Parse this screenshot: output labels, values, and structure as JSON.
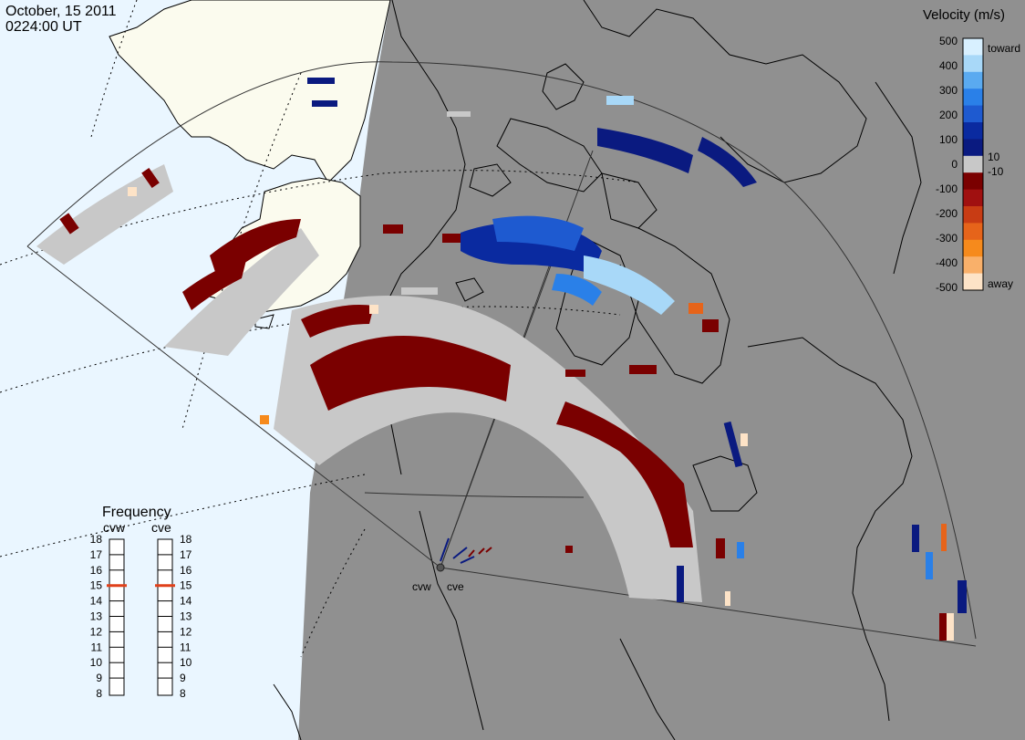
{
  "header": {
    "date": "October, 15 2011",
    "time": "0224:00 UT"
  },
  "colorbar": {
    "title": "Velocity (m/s)",
    "ticks": [
      "500",
      "400",
      "300",
      "200",
      "100",
      "0",
      "-100",
      "-200",
      "-300",
      "-400",
      "-500"
    ],
    "small_labels": [
      "10",
      "-10"
    ],
    "toward_label": "toward",
    "away_label": "away",
    "colors": [
      "#fde3c7",
      "#f9b06a",
      "#f68a1c",
      "#e6641a",
      "#c83c14",
      "#a01010",
      "#7a0000",
      "#c8c8c8",
      "#0a1a80",
      "#0a2aa0",
      "#1e5ad0",
      "#2a80e8",
      "#5aaaf0",
      "#a8d8f8",
      "#d8f0ff"
    ]
  },
  "frequency_panel": {
    "title": "Frequency",
    "radar_left": "cvw",
    "radar_right": "cve",
    "scale": [
      "18",
      "17",
      "16",
      "15",
      "14",
      "13",
      "12",
      "11",
      "10",
      "9",
      "8"
    ],
    "cvw_value": 15,
    "cve_value": 15,
    "marker_color": "#e0401a"
  },
  "radar_sites": {
    "left": "cvw",
    "right": "cve"
  },
  "colors": {
    "day": "#eaf6ff",
    "night": "#909090",
    "land_day": "#fbfbee",
    "ground_scatter": "#c8c8c8"
  }
}
